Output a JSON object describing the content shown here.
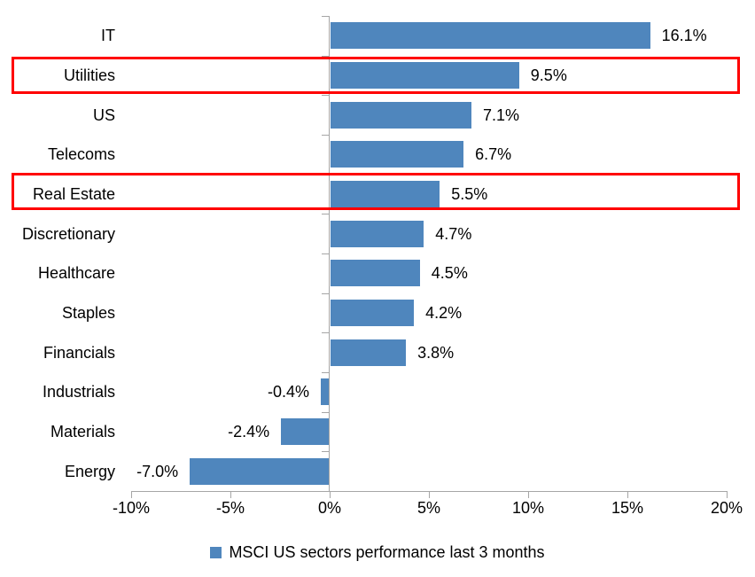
{
  "chart_data": {
    "type": "bar",
    "orientation": "horizontal",
    "title": "",
    "categories": [
      "IT",
      "Utilities",
      "US",
      "Telecoms",
      "Real Estate",
      "Discretionary",
      "Healthcare",
      "Staples",
      "Financials",
      "Industrials",
      "Materials",
      "Energy"
    ],
    "values": [
      16.1,
      9.5,
      7.1,
      6.7,
      5.5,
      4.7,
      4.5,
      4.2,
      3.8,
      -0.4,
      -2.4,
      -7.0
    ],
    "value_labels": [
      "16.1%",
      "9.5%",
      "7.1%",
      "6.7%",
      "5.5%",
      "4.7%",
      "4.5%",
      "4.2%",
      "3.8%",
      "-0.4%",
      "-2.4%",
      "-7.0%"
    ],
    "highlighted_categories": [
      "Utilities",
      "Real Estate"
    ],
    "x_ticks": [
      {
        "value": -10,
        "label": "-10%"
      },
      {
        "value": -5,
        "label": "-5%"
      },
      {
        "value": 0,
        "label": "0%"
      },
      {
        "value": 5,
        "label": "5%"
      },
      {
        "value": 10,
        "label": "10%"
      },
      {
        "value": 15,
        "label": "15%"
      },
      {
        "value": 20,
        "label": "20%"
      }
    ],
    "xlim": [
      -10,
      20
    ],
    "grid": false,
    "legend": "MSCI US sectors performance last 3 months",
    "legend_position": "bottom-center",
    "bar_color": "#4f86bd",
    "highlight_color": "#ff0000",
    "axis_color": "#a6a6a6",
    "text_color": "#000000"
  }
}
